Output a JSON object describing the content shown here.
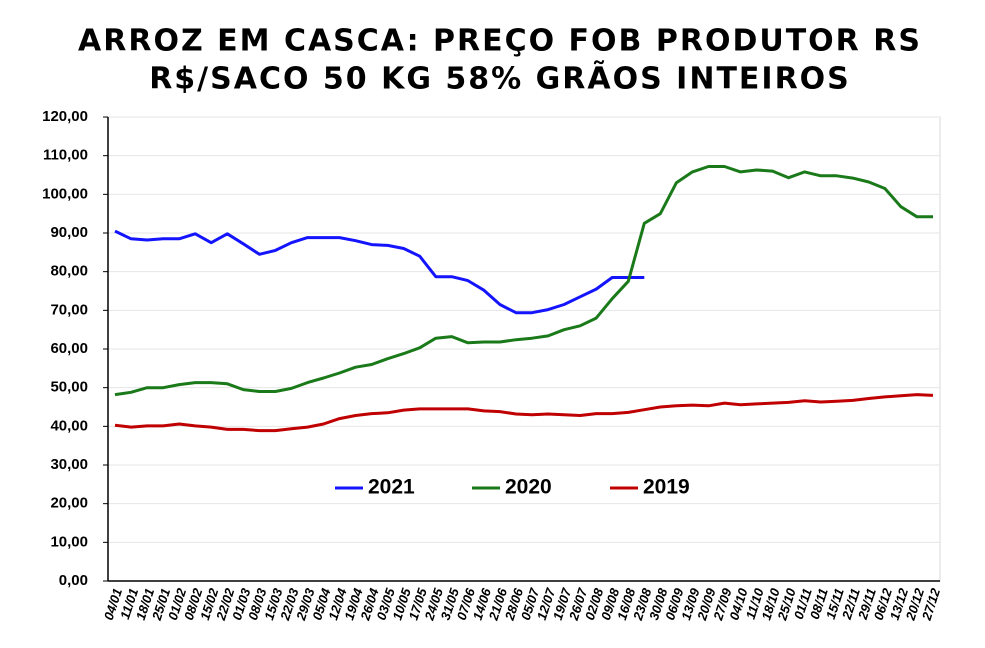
{
  "chart_data": {
    "type": "line",
    "title": [
      "ARROZ EM CASCA: PREÇO FOB PRODUTOR RS",
      "R$/SACO 50 KG 58% GRÃOS INTEIROS"
    ],
    "categories": [
      "04/01",
      "11/01",
      "18/01",
      "25/01",
      "01/02",
      "08/02",
      "15/02",
      "22/02",
      "01/03",
      "08/03",
      "15/03",
      "22/03",
      "29/03",
      "05/04",
      "12/04",
      "19/04",
      "26/04",
      "03/05",
      "10/05",
      "17/05",
      "24/05",
      "31/05",
      "07/06",
      "14/06",
      "21/06",
      "28/06",
      "05/07",
      "12/07",
      "19/07",
      "26/07",
      "02/08",
      "09/08",
      "16/08",
      "23/08",
      "30/08",
      "06/09",
      "13/09",
      "20/09",
      "27/09",
      "04/10",
      "11/10",
      "18/10",
      "25/10",
      "01/11",
      "08/11",
      "15/11",
      "22/11",
      "29/11",
      "06/12",
      "13/12",
      "20/12",
      "27/12"
    ],
    "series": [
      {
        "name": "2021",
        "color": "#1414ff",
        "values": [
          90.5,
          88.5,
          88.2,
          88.5,
          88.5,
          89.8,
          87.5,
          89.8,
          87.2,
          84.5,
          85.5,
          87.5,
          88.8,
          88.8,
          88.8,
          88,
          87,
          86.8,
          86,
          84,
          78.7,
          78.7,
          77.7,
          75.2,
          71.5,
          69.4,
          69.4,
          70.2,
          71.5,
          73.5,
          75.5,
          78.5,
          78.5,
          78.5,
          null,
          null,
          null,
          null,
          null,
          null,
          null,
          null,
          null,
          null,
          null,
          null,
          null,
          null,
          null,
          null,
          null,
          null
        ]
      },
      {
        "name": "2020",
        "color": "#1a7a1a",
        "values": [
          48.2,
          48.8,
          50,
          50,
          50.8,
          51.3,
          51.3,
          51,
          49.5,
          49,
          49,
          49.8,
          51.3,
          52.5,
          53.8,
          55.3,
          56,
          57.5,
          58.8,
          60.3,
          62.8,
          63.2,
          61.6,
          61.8,
          61.8,
          62.4,
          62.8,
          63.4,
          65,
          66,
          68,
          73,
          77.5,
          92.5,
          95,
          103,
          105.8,
          107.2,
          107.2,
          105.8,
          106.3,
          106,
          104.3,
          105.8,
          104.8,
          104.8,
          104.2,
          103.2,
          101.5,
          96.8,
          94.2,
          94.2
        ]
      },
      {
        "name": "2019",
        "color": "#c00000",
        "values": [
          40.3,
          39.8,
          40.1,
          40.1,
          40.6,
          40.1,
          39.8,
          39.2,
          39.2,
          38.9,
          38.9,
          39.4,
          39.8,
          40.6,
          42,
          42.8,
          43.3,
          43.5,
          44.2,
          44.5,
          44.5,
          44.5,
          44.5,
          44,
          43.8,
          43.2,
          43,
          43.2,
          43,
          42.8,
          43.3,
          43.3,
          43.6,
          44.3,
          45,
          45.3,
          45.5,
          45.3,
          46,
          45.6,
          45.8,
          46,
          46.2,
          46.6,
          46.3,
          46.5,
          46.7,
          47.2,
          47.6,
          47.9,
          48.2,
          48
        ]
      }
    ],
    "ylim": [
      0,
      120
    ],
    "yticks": [
      {
        "value": 0,
        "label": "0,00"
      },
      {
        "value": 10,
        "label": "10,00"
      },
      {
        "value": 20,
        "label": "20,00"
      },
      {
        "value": 30,
        "label": "30,00"
      },
      {
        "value": 40,
        "label": "40,00"
      },
      {
        "value": 50,
        "label": "50,00"
      },
      {
        "value": 60,
        "label": "60,00"
      },
      {
        "value": 70,
        "label": "70,00"
      },
      {
        "value": 80,
        "label": "80,00"
      },
      {
        "value": 90,
        "label": "90,00"
      },
      {
        "value": 100,
        "label": "100,00"
      },
      {
        "value": 110,
        "label": "110,00"
      },
      {
        "value": 120,
        "label": "120,00"
      }
    ],
    "grid": true,
    "legend": "center"
  }
}
